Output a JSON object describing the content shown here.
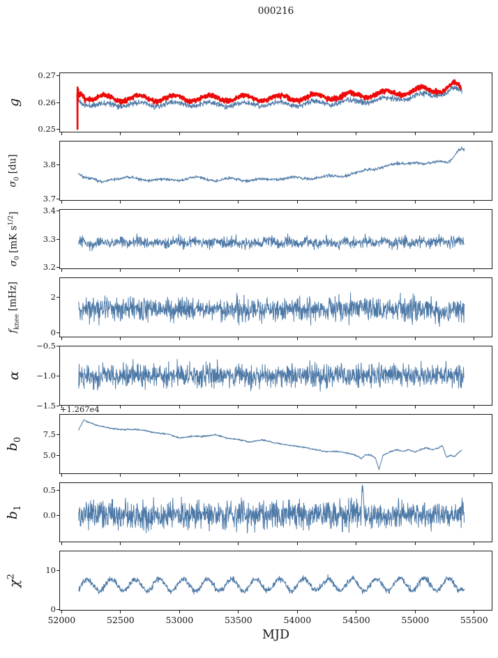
{
  "chart_data": {
    "type": "line",
    "title": "000216",
    "xlabel": "MJD",
    "xlim": [
      51980,
      55655
    ],
    "grid": false,
    "legend": "none",
    "xticks": [
      {
        "label": "52000",
        "v": 52000
      },
      {
        "label": "52500",
        "v": 52500
      },
      {
        "label": "53000",
        "v": 53000
      },
      {
        "label": "53500",
        "v": 53500
      },
      {
        "label": "54000",
        "v": 54000
      },
      {
        "label": "54500",
        "v": 54500
      },
      {
        "label": "55000",
        "v": 55000
      },
      {
        "label": "55500",
        "v": 55500
      }
    ],
    "panels": [
      {
        "name": "g",
        "ylabel_html": "<i>g</i>",
        "ylabel_size": "big",
        "ylim": [
          0.2488,
          0.2712
        ],
        "yticks": [
          {
            "label": "0.27",
            "v": 0.27
          },
          {
            "label": "0.26",
            "v": 0.26
          },
          {
            "label": "0.25",
            "v": 0.25
          }
        ],
        "series": [
          {
            "name": "g-secondary",
            "color": "#4d79a7",
            "width": 1.0,
            "seed": 11,
            "samples": 1250,
            "noise": 0.0018,
            "sine": {
              "amp": 0.0008,
              "period": 300,
              "phase": 145
            },
            "anchors": [
              [
                52140,
                0.2612
              ],
              [
                52170,
                0.26
              ],
              [
                52250,
                0.2592
              ],
              [
                52330,
                0.2588
              ],
              [
                52420,
                0.2596
              ],
              [
                52600,
                0.2592
              ],
              [
                53000,
                0.2594
              ],
              [
                53500,
                0.2592
              ],
              [
                54000,
                0.2595
              ],
              [
                54300,
                0.2599
              ],
              [
                54600,
                0.2606
              ],
              [
                54800,
                0.2613
              ],
              [
                55000,
                0.2622
              ],
              [
                55100,
                0.263
              ],
              [
                55200,
                0.2632
              ],
              [
                55280,
                0.2638
              ],
              [
                55330,
                0.265
              ],
              [
                55360,
                0.2645
              ],
              [
                55400,
                0.264
              ]
            ]
          },
          {
            "name": "g-main",
            "color": "#ec0a0a",
            "width": 2.7,
            "seed": 7,
            "samples": 1350,
            "noise": 0.0015,
            "sine": {
              "amp": 0.0011,
              "period": 300,
              "phase": 145
            },
            "anchors": [
              [
                52128,
                0.2638
              ],
              [
                52129,
                0.2502
              ],
              [
                52130,
                0.266
              ],
              [
                52132,
                0.261
              ],
              [
                52135,
                0.2645
              ],
              [
                52140,
                0.263
              ],
              [
                52160,
                0.2638
              ],
              [
                52200,
                0.2622
              ],
              [
                52280,
                0.2612
              ],
              [
                52360,
                0.2618
              ],
              [
                52500,
                0.2615
              ],
              [
                53000,
                0.2617
              ],
              [
                53500,
                0.2616
              ],
              [
                54000,
                0.2618
              ],
              [
                54300,
                0.2623
              ],
              [
                54600,
                0.263
              ],
              [
                54800,
                0.2636
              ],
              [
                55000,
                0.2644
              ],
              [
                55080,
                0.265
              ],
              [
                55130,
                0.2645
              ],
              [
                55180,
                0.2652
              ],
              [
                55230,
                0.2648
              ],
              [
                55280,
                0.2656
              ],
              [
                55330,
                0.2668
              ],
              [
                55360,
                0.2662
              ],
              [
                55390,
                0.265
              ]
            ]
          }
        ]
      },
      {
        "name": "sigma0-du",
        "ylabel_html": "<i>&#963;</i><sub>0</sub> [du]",
        "ylabel_size": "small",
        "ylim": [
          3.695,
          3.872
        ],
        "yticks": [
          {
            "label": "3.8",
            "v": 3.8
          },
          {
            "label": "3.7",
            "v": 3.7
          }
        ],
        "series": [
          {
            "name": "sigma0-du-line",
            "color": "#4d79a7",
            "width": 1.0,
            "seed": 21,
            "samples": 1150,
            "noise": 0.008,
            "sine": {
              "amp": 0.003,
              "period": 280,
              "phase": 100
            },
            "anchors": [
              [
                52140,
                3.777
              ],
              [
                52180,
                3.768
              ],
              [
                52250,
                3.758
              ],
              [
                52330,
                3.748
              ],
              [
                52420,
                3.76
              ],
              [
                52550,
                3.762
              ],
              [
                52700,
                3.757
              ],
              [
                52850,
                3.755
              ],
              [
                53000,
                3.757
              ],
              [
                53150,
                3.763
              ],
              [
                53300,
                3.755
              ],
              [
                53450,
                3.759
              ],
              [
                53600,
                3.755
              ],
              [
                53750,
                3.757
              ],
              [
                53900,
                3.762
              ],
              [
                54050,
                3.76
              ],
              [
                54200,
                3.764
              ],
              [
                54350,
                3.768
              ],
              [
                54500,
                3.776
              ],
              [
                54650,
                3.79
              ],
              [
                54800,
                3.801
              ],
              [
                54900,
                3.806
              ],
              [
                55000,
                3.811
              ],
              [
                55080,
                3.801
              ],
              [
                55150,
                3.809
              ],
              [
                55220,
                3.816
              ],
              [
                55280,
                3.81
              ],
              [
                55320,
                3.82
              ],
              [
                55360,
                3.838
              ],
              [
                55400,
                3.849
              ],
              [
                55420,
                3.843
              ]
            ]
          }
        ]
      },
      {
        "name": "sigma0-mk",
        "ylabel_html": "<i>&#963;</i><sub>0</sub> [mK s<sup>1/2</sup>]",
        "ylabel_size": "small",
        "ylim": [
          3.195,
          3.405
        ],
        "yticks": [
          {
            "label": "3.4",
            "v": 3.4
          },
          {
            "label": "3.3",
            "v": 3.3
          },
          {
            "label": "3.2",
            "v": 3.2
          }
        ],
        "series": [
          {
            "name": "sigma0-mk-line",
            "color": "#4d79a7",
            "width": 1.0,
            "seed": 31,
            "samples": 1150,
            "noise": 0.034,
            "sine": {
              "amp": 0.005,
              "period": 160,
              "phase": 0
            },
            "anchors": [
              [
                52140,
                3.284
              ],
              [
                52400,
                3.29
              ],
              [
                52700,
                3.286
              ],
              [
                53000,
                3.288
              ],
              [
                53400,
                3.286
              ],
              [
                53800,
                3.289
              ],
              [
                54200,
                3.288
              ],
              [
                54600,
                3.289
              ],
              [
                55000,
                3.29
              ],
              [
                55420,
                3.291
              ]
            ]
          }
        ]
      },
      {
        "name": "fknee",
        "ylabel_html": "<i>f</i><sub>knee</sub> [mHz]",
        "ylabel_size": "small",
        "ylim": [
          -0.25,
          3.1
        ],
        "yticks": [
          {
            "label": "2",
            "v": 2
          },
          {
            "label": "0",
            "v": 0
          }
        ],
        "series": [
          {
            "name": "fknee-line",
            "color": "#4d79a7",
            "width": 1.0,
            "seed": 41,
            "samples": 1300,
            "noise": 1.15,
            "sine": {
              "amp": 0.0,
              "period": 200,
              "phase": 0
            },
            "anchors": [
              [
                52140,
                1.33
              ],
              [
                53000,
                1.32
              ],
              [
                54000,
                1.33
              ],
              [
                55420,
                1.3
              ]
            ]
          }
        ]
      },
      {
        "name": "alpha",
        "ylabel_html": "<i>&#945;</i>",
        "ylabel_size": "big",
        "ylim": [
          -1.5,
          -0.5
        ],
        "yticks": [
          {
            "label": "&#8722;0.5",
            "v": -0.5
          },
          {
            "label": "&#8722;1.0",
            "v": -1.0
          },
          {
            "label": "&#8722;1.5",
            "v": -1.5
          }
        ],
        "series": [
          {
            "name": "alpha-line",
            "color": "#4d79a7",
            "width": 1.0,
            "seed": 51,
            "samples": 1300,
            "noise": 0.34,
            "sine": {
              "amp": 0.0,
              "period": 200,
              "phase": 0
            },
            "anchors": [
              [
                52140,
                -1.0
              ],
              [
                55420,
                -1.0
              ]
            ]
          }
        ]
      },
      {
        "name": "b0",
        "ylabel_html": "<i>b</i><sub>0</sub>",
        "ylabel_size": "big",
        "offset_text": "+1.267e4",
        "ylim": [
          2.85,
          9.9
        ],
        "yticks": [
          {
            "label": "7.5",
            "v": 7.5
          },
          {
            "label": "5.0",
            "v": 5.0
          }
        ],
        "series": [
          {
            "name": "b0-line",
            "color": "#4d79a7",
            "width": 1.0,
            "seed": 61,
            "samples": 1150,
            "noise": 0.16,
            "sine": {
              "amp": 0.0,
              "period": 200,
              "phase": 0
            },
            "anchors": [
              [
                52140,
                8.1
              ],
              [
                52165,
                8.8
              ],
              [
                52185,
                9.3
              ],
              [
                52220,
                9.0
              ],
              [
                52300,
                8.6
              ],
              [
                52400,
                8.3
              ],
              [
                52500,
                8.1
              ],
              [
                52620,
                8.15
              ],
              [
                52700,
                8.0
              ],
              [
                52800,
                7.7
              ],
              [
                52900,
                7.55
              ],
              [
                53000,
                7.1
              ],
              [
                53100,
                7.3
              ],
              [
                53200,
                7.3
              ],
              [
                53300,
                7.5
              ],
              [
                53400,
                7.1
              ],
              [
                53500,
                6.9
              ],
              [
                53600,
                6.6
              ],
              [
                53700,
                6.9
              ],
              [
                53780,
                6.6
              ],
              [
                53850,
                6.4
              ],
              [
                53950,
                6.2
              ],
              [
                54050,
                6.0
              ],
              [
                54150,
                5.7
              ],
              [
                54250,
                5.45
              ],
              [
                54350,
                5.5
              ],
              [
                54450,
                5.2
              ],
              [
                54520,
                4.9
              ],
              [
                54545,
                4.6
              ],
              [
                54580,
                5.1
              ],
              [
                54630,
                5.0
              ],
              [
                54665,
                4.7
              ],
              [
                54695,
                3.3
              ],
              [
                54730,
                5.0
              ],
              [
                54800,
                5.5
              ],
              [
                54850,
                5.7
              ],
              [
                54900,
                5.5
              ],
              [
                54950,
                5.7
              ],
              [
                55000,
                5.4
              ],
              [
                55050,
                5.7
              ],
              [
                55100,
                5.9
              ],
              [
                55150,
                5.7
              ],
              [
                55200,
                5.9
              ],
              [
                55235,
                6.2
              ],
              [
                55270,
                4.8
              ],
              [
                55310,
                5.0
              ],
              [
                55340,
                4.85
              ],
              [
                55370,
                5.3
              ],
              [
                55400,
                5.7
              ]
            ]
          }
        ]
      },
      {
        "name": "b1",
        "ylabel_html": "<i>b</i><sub>1</sub>",
        "ylabel_size": "big",
        "ylim": [
          -0.55,
          0.67
        ],
        "yticks": [
          {
            "label": "0.5",
            "v": 0.5
          },
          {
            "label": "0.0",
            "v": 0.0
          }
        ],
        "series": [
          {
            "name": "b1-line",
            "color": "#4d79a7",
            "width": 1.0,
            "seed": 71,
            "samples": 1300,
            "noise": 0.5,
            "sine": {
              "amp": 0.0,
              "period": 200,
              "phase": 0
            },
            "anchors": [
              [
                52140,
                0.01
              ],
              [
                54540,
                0.01
              ],
              [
                54556,
                0.65
              ],
              [
                54570,
                0.01
              ],
              [
                55420,
                0.02
              ]
            ]
          }
        ]
      },
      {
        "name": "chi2",
        "ylabel_html": "<i>&#967;</i><sup>2</sup>",
        "ylabel_size": "big",
        "ylim": [
          -0.3,
          15.2
        ],
        "yticks": [
          {
            "label": "10",
            "v": 10
          },
          {
            "label": "0",
            "v": 0
          }
        ],
        "series": [
          {
            "name": "chi2-line",
            "color": "#4d79a7",
            "width": 1.0,
            "seed": 81,
            "samples": 1300,
            "noise": 1.3,
            "sine": {
              "amp": 1.6,
              "period": 205,
              "phase": 30
            },
            "anchors": [
              [
                52140,
                6.2
              ],
              [
                52500,
                6.3
              ],
              [
                53000,
                6.3
              ],
              [
                53500,
                6.2
              ],
              [
                54000,
                6.4
              ],
              [
                54500,
                6.3
              ],
              [
                55000,
                6.5
              ],
              [
                55300,
                6.4
              ],
              [
                55420,
                6.6
              ]
            ]
          }
        ]
      }
    ]
  }
}
